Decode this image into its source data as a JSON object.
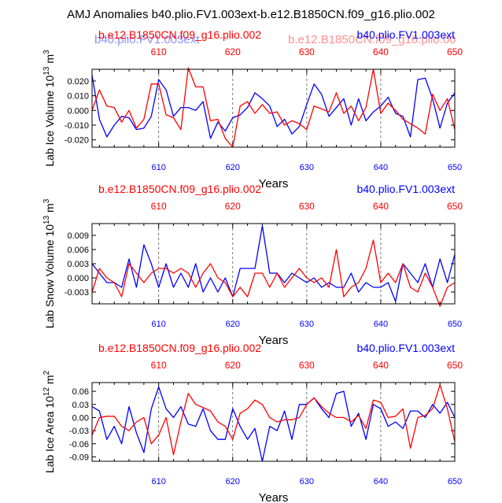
{
  "figure_title": "AMJ Anomalies b40.plio.FV1.003ext-b.e12.B1850CN.f09_g16.plio.002",
  "colors": {
    "red": "#ff0000",
    "blue": "#0000ff",
    "axis": "#000000",
    "grid": "#555555"
  },
  "chart_data": [
    {
      "type": "line",
      "title_left": "b.e12.B1850CN.f09_g16.plio.002",
      "title_right": "b40.plio.FV1.003ext",
      "title_left_ghost": "b40.plio.FV1.003ext",
      "title_right_ghost": "b.e12.B1850CN.f09_g16.plio.00",
      "ylabel": "Lab Ice Volume 10",
      "ylabel_exp": "13",
      "ylabel_unit": " m",
      "ylabel_unit_exp": "3",
      "xlabel": "Years",
      "xlim": [
        601,
        650
      ],
      "ylim": [
        -0.025,
        0.028
      ],
      "yticks": [
        0.02,
        0.01,
        0.0,
        -0.01,
        -0.02
      ],
      "ytick_labels": [
        "0.020",
        "0.010",
        "0.000",
        "-0.010",
        "-0.020"
      ],
      "xticks": [
        610,
        620,
        630,
        640,
        650
      ],
      "xtick_labels_top": [
        "610",
        "620",
        "630",
        "640",
        "650"
      ],
      "xtick_labels_bottom": [
        "610",
        "620",
        "630",
        "640",
        "650"
      ],
      "x": [
        601,
        602,
        603,
        604,
        605,
        606,
        607,
        608,
        609,
        610,
        611,
        612,
        613,
        614,
        615,
        616,
        617,
        618,
        619,
        620,
        621,
        622,
        623,
        624,
        625,
        626,
        627,
        628,
        629,
        630,
        631,
        632,
        633,
        634,
        635,
        636,
        637,
        638,
        639,
        640,
        641,
        642,
        643,
        644,
        645,
        646,
        647,
        648,
        649,
        650
      ],
      "series": [
        {
          "name": "b.e12.B1850CN.f09_g16.plio.002",
          "color": "#ff0000",
          "values": [
            0.0,
            0.014,
            0.003,
            0.002,
            -0.008,
            0.0,
            -0.012,
            -0.006,
            0.018,
            0.018,
            -0.003,
            -0.005,
            -0.013,
            0.029,
            0.016,
            0.016,
            -0.007,
            -0.006,
            -0.019,
            -0.025,
            0.003,
            0.006,
            -0.002,
            0.004,
            -0.002,
            -0.001,
            -0.01,
            -0.007,
            -0.009,
            -0.013,
            0.003,
            0.001,
            -0.001,
            0.012,
            -0.002,
            0.003,
            -0.007,
            0.002,
            0.028,
            -0.002,
            0.005,
            0.0,
            -0.006,
            -0.009,
            -0.012,
            -0.016,
            0.011,
            0.0,
            0.008,
            -0.013
          ]
        },
        {
          "name": "b40.plio.FV1.003ext",
          "color": "#0000ff",
          "values": [
            0.024,
            -0.006,
            -0.018,
            -0.01,
            -0.004,
            -0.005,
            -0.013,
            -0.012,
            -0.004,
            0.021,
            0.014,
            -0.004,
            0.002,
            0.002,
            0.0,
            0.006,
            -0.019,
            -0.008,
            -0.014,
            -0.005,
            -0.003,
            0.002,
            0.012,
            0.008,
            0.003,
            -0.011,
            -0.006,
            -0.016,
            -0.011,
            0.004,
            0.018,
            0.011,
            -0.004,
            0.002,
            0.008,
            -0.01,
            0.008,
            -0.007,
            -0.001,
            0.003,
            0.009,
            -0.002,
            -0.004,
            -0.018,
            0.021,
            0.022,
            0.008,
            -0.012,
            0.005,
            0.012
          ]
        }
      ]
    },
    {
      "type": "line",
      "title_left": "b.e12.B1850CN.f09_g16.plio.002",
      "title_right": "b40.plio.FV1.003ext",
      "ylabel": "Lab Snow Volume 10",
      "ylabel_exp": "13",
      "ylabel_unit": " m",
      "ylabel_unit_exp": "3",
      "xlabel": "Years",
      "xlim": [
        601,
        650
      ],
      "ylim": [
        -0.0055,
        0.0115
      ],
      "yticks": [
        0.009,
        0.006,
        0.003,
        0.0,
        -0.003
      ],
      "ytick_labels": [
        "0.009",
        "0.006",
        "0.003",
        "0.000",
        "-0.003"
      ],
      "xticks": [
        610,
        620,
        630,
        640,
        650
      ],
      "xtick_labels_top": [
        "610",
        "620",
        "630",
        "640",
        "650"
      ],
      "xtick_labels_bottom": [
        "610",
        "620",
        "630",
        "640",
        "650"
      ],
      "x": [
        601,
        602,
        603,
        604,
        605,
        606,
        607,
        608,
        609,
        610,
        611,
        612,
        613,
        614,
        615,
        616,
        617,
        618,
        619,
        620,
        621,
        622,
        623,
        624,
        625,
        626,
        627,
        628,
        629,
        630,
        631,
        632,
        633,
        634,
        635,
        636,
        637,
        638,
        639,
        640,
        641,
        642,
        643,
        644,
        645,
        646,
        647,
        648,
        649,
        650
      ],
      "series": [
        {
          "name": "b.e12.B1850CN.f09_g16.plio.002",
          "color": "#ff0000",
          "values": [
            -0.003,
            0.002,
            0.0,
            -0.001,
            -0.004,
            0.003,
            0.001,
            -0.001,
            0.001,
            0.002,
            0.002,
            0.001,
            0.002,
            0.001,
            -0.002,
            0.001,
            0.003,
            0.0,
            -0.001,
            -0.004,
            -0.002,
            -0.004,
            0.001,
            0.001,
            -0.002,
            0.001,
            -0.002,
            0.0,
            0.002,
            0.0,
            -0.001,
            0.0,
            -0.002,
            0.006,
            -0.004,
            -0.002,
            -0.001,
            0.002,
            0.008,
            -0.001,
            0.001,
            -0.001,
            0.003,
            -0.002,
            -0.003,
            0.001,
            -0.002,
            -0.006,
            -0.002,
            -0.001
          ]
        },
        {
          "name": "b40.plio.FV1.003ext",
          "color": "#0000ff",
          "values": [
            0.003,
            0.001,
            -0.001,
            -0.001,
            -0.002,
            0.004,
            -0.002,
            0.007,
            0.003,
            -0.002,
            0.003,
            -0.002,
            0.001,
            -0.002,
            0.003,
            -0.003,
            0.0,
            -0.003,
            0.0,
            -0.004,
            0.002,
            0.002,
            0.002,
            0.011,
            0.001,
            0.001,
            -0.001,
            0.001,
            0.0,
            -0.001,
            0.0,
            -0.002,
            -0.001,
            -0.002,
            -0.002,
            0.001,
            -0.003,
            -0.001,
            -0.002,
            -0.002,
            -0.001,
            -0.005,
            0.003,
            0.001,
            -0.001,
            0.003,
            -0.002,
            0.004,
            -0.001,
            0.005
          ]
        }
      ]
    },
    {
      "type": "line",
      "title_left": "b.e12.B1850CN.f09_g16.plio.002",
      "title_right": "b40.plio.FV1.003ext",
      "ylabel": "Lab Ice Area 10",
      "ylabel_exp": "12",
      "ylabel_unit": " m",
      "ylabel_unit_exp": "2",
      "xlabel": "Years",
      "xlim": [
        601,
        650
      ],
      "ylim": [
        -0.1,
        0.08
      ],
      "yticks": [
        0.06,
        0.03,
        0.0,
        -0.03,
        -0.06,
        -0.09
      ],
      "ytick_labels": [
        "0.06",
        "0.03",
        "0.00",
        "-0.03",
        "-0.06",
        "-0.09"
      ],
      "xticks": [
        610,
        620,
        630,
        640,
        650
      ],
      "xtick_labels_top": [
        "610",
        "620",
        "630",
        "640",
        "650"
      ],
      "xtick_labels_bottom": [
        "610",
        "620",
        "630",
        "640",
        "650"
      ],
      "x": [
        601,
        602,
        603,
        604,
        605,
        606,
        607,
        608,
        609,
        610,
        611,
        612,
        613,
        614,
        615,
        616,
        617,
        618,
        619,
        620,
        621,
        622,
        623,
        624,
        625,
        626,
        627,
        628,
        629,
        630,
        631,
        632,
        633,
        634,
        635,
        636,
        637,
        638,
        639,
        640,
        641,
        642,
        643,
        644,
        645,
        646,
        647,
        648,
        649,
        650
      ],
      "series": [
        {
          "name": "b.e12.B1850CN.f09_g16.plio.002",
          "color": "#ff0000",
          "values": [
            -0.04,
            0.0,
            0.003,
            0.003,
            -0.02,
            -0.03,
            -0.01,
            0.0,
            -0.06,
            -0.04,
            0.0,
            -0.085,
            -0.01,
            0.055,
            0.03,
            0.023,
            0.015,
            -0.01,
            -0.02,
            -0.05,
            0.01,
            0.02,
            0.04,
            0.03,
            0.0,
            -0.01,
            -0.005,
            -0.005,
            0.0,
            0.03,
            0.045,
            0.025,
            0.01,
            0.0,
            0.0,
            -0.01,
            0.005,
            -0.025,
            0.04,
            0.035,
            0.0,
            0.003,
            0.02,
            -0.07,
            0.0,
            0.005,
            0.02,
            0.075,
            0.02,
            -0.055
          ]
        },
        {
          "name": "b40.plio.FV1.003ext",
          "color": "#0000ff",
          "values": [
            0.025,
            0.015,
            -0.05,
            -0.02,
            -0.06,
            0.025,
            -0.035,
            -0.08,
            0.02,
            0.07,
            0.02,
            0.0,
            0.025,
            -0.015,
            -0.02,
            0.02,
            -0.03,
            -0.05,
            -0.05,
            0.02,
            -0.02,
            -0.05,
            -0.025,
            -0.1,
            -0.02,
            -0.03,
            0.015,
            -0.05,
            0.03,
            0.03,
            0.045,
            0.02,
            0.0,
            0.055,
            0.06,
            -0.02,
            0.01,
            -0.05,
            0.03,
            0.02,
            -0.02,
            -0.01,
            -0.025,
            0.015,
            0.015,
            0.0,
            0.03,
            0.01,
            0.035,
            0.0
          ]
        }
      ]
    }
  ]
}
